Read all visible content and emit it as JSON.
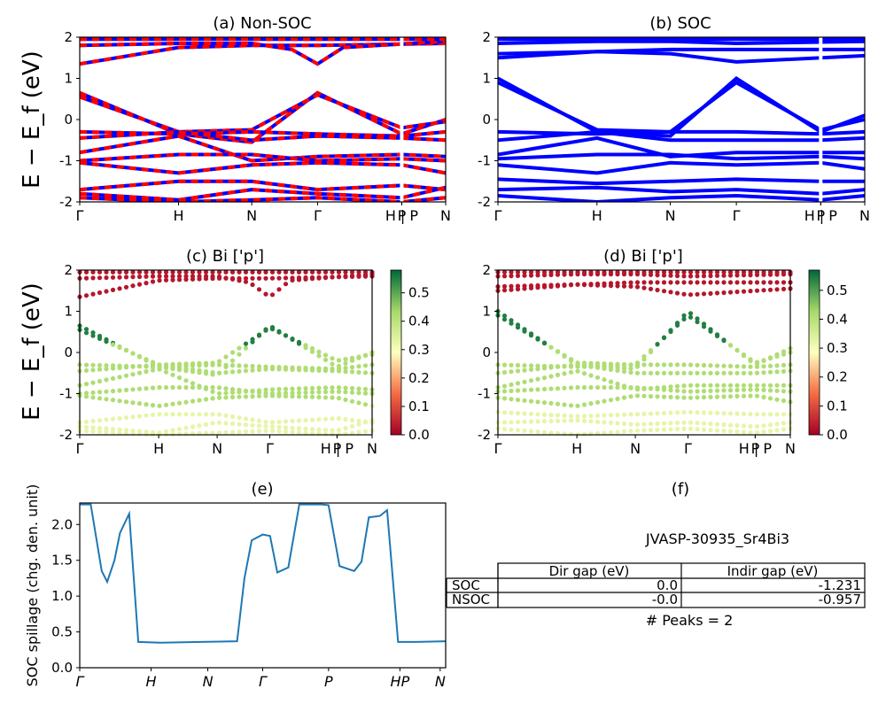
{
  "panels": {
    "a": {
      "title": "(a) Non-SOC"
    },
    "b": {
      "title": "(b) SOC"
    },
    "c": {
      "title": "(c)  Bi ['p']"
    },
    "d": {
      "title": "(d) Bi ['p']"
    },
    "e": {
      "title": "(e)"
    },
    "f": {
      "title": "(f)"
    }
  },
  "band_ylabel": "E − E_f (eV)",
  "spillage_ylabel": "SOC spillage (chg. den. unit)",
  "kpath_labels": [
    "Γ",
    "H",
    "N",
    "Γ",
    "P",
    "H | P",
    "N"
  ],
  "colors": {
    "blue": "#0000ff",
    "red": "#ff0000",
    "spill": "#1f77b4"
  },
  "colorbar_ticks": {
    "c": [
      "0.0",
      "0.1",
      "0.2",
      "0.3",
      "0.4",
      "0.5"
    ],
    "d": [
      "0.0",
      "0.1",
      "0.2",
      "0.3",
      "0.4",
      "0.5"
    ]
  },
  "table": {
    "heading": "JVASP-30935_Sr4Bi3",
    "col_headers": [
      "Dir gap (eV)",
      "Indir gap (eV)"
    ],
    "rows": [
      {
        "label": "SOC",
        "dir": "0.0",
        "indir": "-1.231"
      },
      {
        "label": "NSOC",
        "dir": "-0.0",
        "indir": "-0.957"
      }
    ],
    "peaks": "# Peaks = 2"
  },
  "chart_data": [
    {
      "id": "a",
      "type": "line",
      "title": "(a) Non-SOC",
      "ylabel": "E − E_f (eV)",
      "ylim": [
        -2,
        2
      ],
      "yticks": [
        -2,
        -1,
        0,
        1,
        2
      ],
      "xticks": [
        "Γ",
        "H",
        "N",
        "Γ",
        "P",
        "H | P",
        "N"
      ],
      "series": [
        {
          "x": [
            0,
            0.27,
            0.47,
            0.65,
            1.0
          ],
          "y": [
            1.35,
            1.75,
            1.8,
            1.8,
            1.85
          ]
        },
        {
          "x": [
            0,
            0.27,
            0.47,
            0.58,
            0.65,
            0.72,
            1.0
          ],
          "y": [
            1.8,
            1.85,
            1.85,
            1.7,
            1.35,
            1.75,
            1.9
          ]
        },
        {
          "x": [
            0,
            0.27,
            0.47,
            0.65,
            1.0
          ],
          "y": [
            1.95,
            1.95,
            1.95,
            1.95,
            1.95
          ]
        },
        {
          "x": [
            0,
            0.27,
            0.47,
            0.65,
            0.88,
            1.0
          ],
          "y": [
            0.65,
            -0.35,
            -0.55,
            0.65,
            -0.35,
            0.0
          ]
        },
        {
          "x": [
            0,
            0.27,
            0.47,
            0.65,
            0.88,
            1.0
          ],
          "y": [
            0.55,
            -0.3,
            -0.25,
            0.6,
            -0.2,
            -0.05
          ]
        },
        {
          "x": [
            0,
            0.27,
            0.47,
            0.65,
            0.88,
            1.0
          ],
          "y": [
            -0.3,
            -0.35,
            -0.3,
            -0.35,
            -0.4,
            -0.3
          ]
        },
        {
          "x": [
            0,
            0.27,
            0.47,
            0.65,
            0.88,
            1.0
          ],
          "y": [
            -0.45,
            -0.3,
            -0.5,
            -0.4,
            -0.45,
            -0.5
          ]
        },
        {
          "x": [
            0,
            0.27,
            0.47,
            0.65,
            0.88,
            1.0
          ],
          "y": [
            -0.8,
            -0.4,
            -1.0,
            -0.9,
            -0.85,
            -0.9
          ]
        },
        {
          "x": [
            0,
            0.27,
            0.47,
            0.65,
            0.88,
            1.0
          ],
          "y": [
            -1.0,
            -0.85,
            -0.85,
            -1.0,
            -0.95,
            -1.0
          ]
        },
        {
          "x": [
            0,
            0.27,
            0.47,
            0.65,
            0.88,
            1.0
          ],
          "y": [
            -1.05,
            -1.3,
            -1.1,
            -1.05,
            -1.1,
            -1.3
          ]
        },
        {
          "x": [
            0,
            0.27,
            0.47,
            0.65,
            0.88,
            1.0
          ],
          "y": [
            -1.7,
            -1.5,
            -1.5,
            -1.7,
            -1.6,
            -1.7
          ]
        },
        {
          "x": [
            0,
            0.27,
            0.47,
            0.65,
            0.88,
            1.0
          ],
          "y": [
            -1.8,
            -1.95,
            -1.7,
            -1.8,
            -1.9,
            -1.65
          ]
        },
        {
          "x": [
            0,
            0.27,
            0.47,
            0.65,
            0.88,
            1.0
          ],
          "y": [
            -1.9,
            -2.0,
            -1.95,
            -1.9,
            -2.0,
            -1.9
          ]
        }
      ]
    },
    {
      "id": "b",
      "type": "line",
      "title": "(b) SOC",
      "ylim": [
        -2,
        2
      ],
      "yticks": [
        -2,
        -1,
        0,
        1,
        2
      ],
      "xticks": [
        "Γ",
        "H",
        "N",
        "Γ",
        "P",
        "H | P",
        "N"
      ],
      "series": [
        {
          "x": [
            0,
            0.27,
            0.47,
            0.65,
            1.0
          ],
          "y": [
            1.5,
            1.65,
            1.6,
            1.4,
            1.55
          ]
        },
        {
          "x": [
            0,
            0.27,
            0.47,
            0.65,
            1.0
          ],
          "y": [
            1.6,
            1.65,
            1.7,
            1.7,
            1.7
          ]
        },
        {
          "x": [
            0,
            0.27,
            0.47,
            0.65,
            1.0
          ],
          "y": [
            1.85,
            1.9,
            1.9,
            1.85,
            1.9
          ]
        },
        {
          "x": [
            0,
            0.27,
            0.47,
            0.65,
            1.0
          ],
          "y": [
            1.95,
            1.95,
            1.95,
            1.95,
            1.95
          ]
        },
        {
          "x": [
            0,
            0.27,
            0.47,
            0.65,
            0.88,
            1.0
          ],
          "y": [
            1.0,
            -0.3,
            -0.4,
            1.0,
            -0.3,
            0.1
          ]
        },
        {
          "x": [
            0,
            0.27,
            0.47,
            0.65,
            0.88,
            1.0
          ],
          "y": [
            0.9,
            -0.25,
            -0.3,
            0.9,
            -0.25,
            0.0
          ]
        },
        {
          "x": [
            0,
            0.27,
            0.47,
            0.65,
            0.88,
            1.0
          ],
          "y": [
            -0.3,
            -0.35,
            -0.3,
            -0.3,
            -0.35,
            -0.3
          ]
        },
        {
          "x": [
            0,
            0.27,
            0.47,
            0.65,
            0.88,
            1.0
          ],
          "y": [
            -0.5,
            -0.3,
            -0.5,
            -0.5,
            -0.5,
            -0.45
          ]
        },
        {
          "x": [
            0,
            0.27,
            0.47,
            0.65,
            0.88,
            1.0
          ],
          "y": [
            -0.85,
            -0.45,
            -0.9,
            -0.8,
            -0.8,
            -0.8
          ]
        },
        {
          "x": [
            0,
            0.27,
            0.47,
            0.65,
            0.88,
            1.0
          ],
          "y": [
            -0.95,
            -0.85,
            -0.85,
            -0.95,
            -0.9,
            -0.95
          ]
        },
        {
          "x": [
            0,
            0.27,
            0.47,
            0.65,
            0.88,
            1.0
          ],
          "y": [
            -1.1,
            -1.3,
            -1.05,
            -1.1,
            -1.05,
            -1.2
          ]
        },
        {
          "x": [
            0,
            0.27,
            0.47,
            0.65,
            0.88,
            1.0
          ],
          "y": [
            -1.45,
            -1.55,
            -1.5,
            -1.45,
            -1.5,
            -1.5
          ]
        },
        {
          "x": [
            0,
            0.27,
            0.47,
            0.65,
            0.88,
            1.0
          ],
          "y": [
            -1.7,
            -1.65,
            -1.75,
            -1.7,
            -1.8,
            -1.7
          ]
        },
        {
          "x": [
            0,
            0.27,
            0.47,
            0.65,
            0.88,
            1.0
          ],
          "y": [
            -1.85,
            -2.0,
            -1.9,
            -1.85,
            -1.95,
            -1.85
          ]
        }
      ]
    },
    {
      "id": "c",
      "type": "scatter",
      "title": "(c)  Bi ['p']",
      "ylabel": "E − E_f (eV)",
      "ylim": [
        -2,
        2
      ],
      "colorbar_range": [
        0.0,
        0.58
      ],
      "xticks": [
        "Γ",
        "H",
        "N",
        "Γ",
        "P",
        "H | P",
        "N"
      ]
    },
    {
      "id": "d",
      "type": "scatter",
      "title": "(d) Bi ['p']",
      "ylim": [
        -2,
        2
      ],
      "colorbar_range": [
        0.0,
        0.57
      ],
      "xticks": [
        "Γ",
        "H",
        "N",
        "Γ",
        "P",
        "H | P",
        "N"
      ]
    },
    {
      "id": "e",
      "type": "line",
      "title": "(e)",
      "ylabel": "SOC spillage (chg. den. unit)",
      "ylim": [
        0.0,
        2.3
      ],
      "yticks": [
        0.0,
        0.5,
        1.0,
        1.5,
        2.0
      ],
      "xticks": [
        "Γ",
        "H",
        "N",
        "Γ",
        "P",
        "HP",
        "N"
      ],
      "x": [
        0,
        0.03,
        0.06,
        0.075,
        0.095,
        0.11,
        0.135,
        0.16,
        0.22,
        0.33,
        0.43,
        0.45,
        0.47,
        0.5,
        0.52,
        0.54,
        0.57,
        0.6,
        0.64,
        0.66,
        0.68,
        0.71,
        0.75,
        0.77,
        0.79,
        0.82,
        0.84,
        0.87,
        0.92,
        1.0
      ],
      "values": [
        2.28,
        2.28,
        1.35,
        1.2,
        1.5,
        1.88,
        2.15,
        0.36,
        0.35,
        0.36,
        0.37,
        1.25,
        1.78,
        1.86,
        1.84,
        1.33,
        1.4,
        2.28,
        2.28,
        2.28,
        2.27,
        1.42,
        1.35,
        1.48,
        2.1,
        2.12,
        2.2,
        0.36,
        0.36,
        0.37
      ]
    }
  ]
}
